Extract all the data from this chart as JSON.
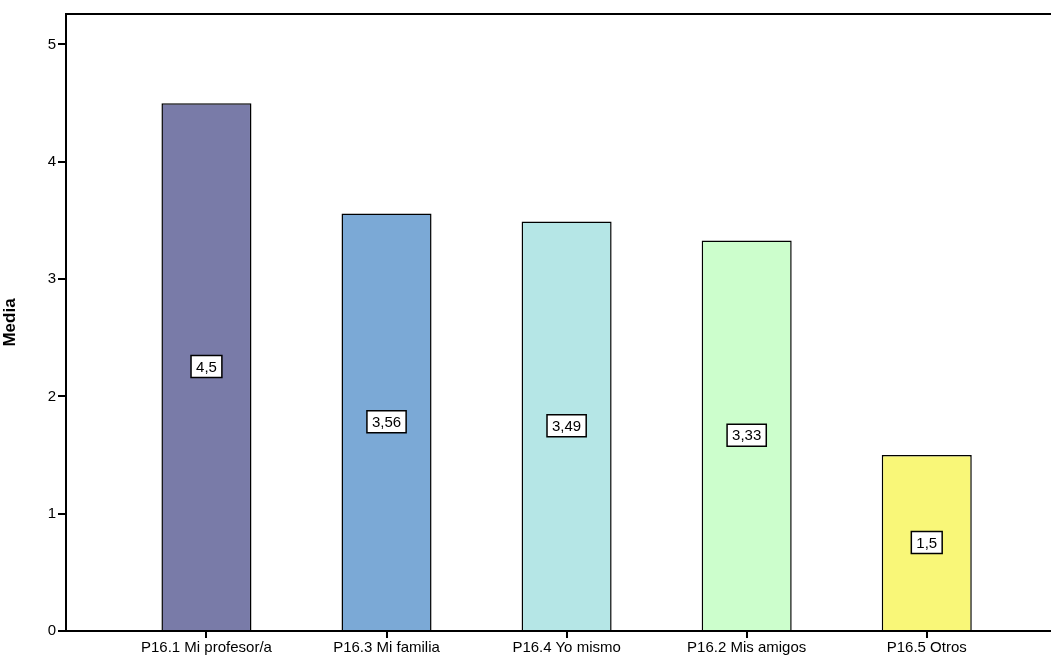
{
  "chart_data": {
    "type": "bar",
    "ylabel": "Media",
    "categories": [
      "P16.1 Mi profesor/a",
      "P16.3 Mi familia",
      "P16.4 Yo mismo",
      "P16.2 Mis amigos",
      "P16.5 Otros"
    ],
    "values": [
      4.5,
      3.56,
      3.49,
      3.33,
      1.5
    ],
    "colors": [
      "#797ba8",
      "#7ba9d6",
      "#b5e6e6",
      "#ccfecc",
      "#f9f778"
    ],
    "value_labels": [
      "4,5",
      "3,56",
      "3,49",
      "3,33",
      "1,5"
    ],
    "ylim": [
      0,
      5.26
    ],
    "yticks": [
      0,
      1,
      2,
      3,
      4,
      5
    ]
  }
}
